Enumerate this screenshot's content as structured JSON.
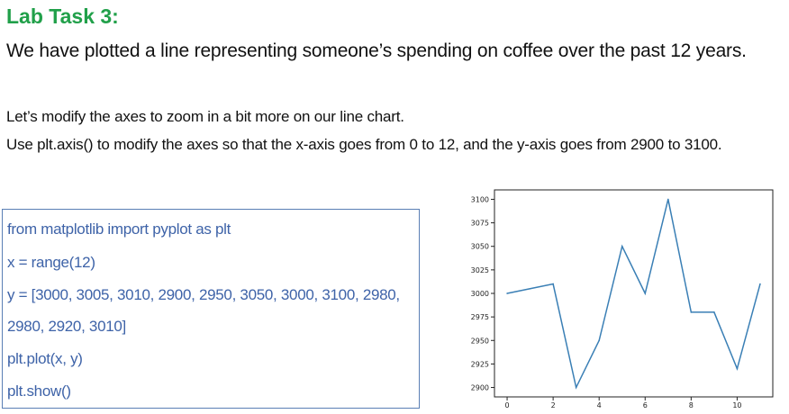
{
  "header": {
    "title": "Lab Task 3:",
    "subtitle": "We have plotted a line representing someone’s spending on coffee over the past 12 years."
  },
  "instructions": [
    "Let’s modify the axes to zoom in a bit more on our line chart.",
    "Use plt.axis() to modify the axes so that the x-axis goes from 0 to 12, and the y-axis goes from 2900 to 3100."
  ],
  "code": {
    "lines": [
      "from matplotlib import pyplot as plt",
      "x = range(12)",
      "y = [3000, 3005, 3010, 2900, 2950, 3050, 3000, 3100, 2980,",
      "2980, 2920, 3010]",
      "plt.plot(x, y)",
      "plt.show()"
    ]
  },
  "chart_data": {
    "type": "line",
    "title": "",
    "xlabel": "",
    "ylabel": "",
    "x": [
      0,
      1,
      2,
      3,
      4,
      5,
      6,
      7,
      8,
      9,
      10,
      11
    ],
    "series": [
      {
        "values": [
          3000,
          3005,
          3010,
          2900,
          2950,
          3050,
          3000,
          3100,
          2980,
          2980,
          2920,
          3010
        ],
        "color": "#3a7fb5"
      }
    ],
    "xlim": [
      -0.55,
      11.55
    ],
    "ylim": [
      2890,
      3110
    ],
    "xticks": [
      0,
      2,
      4,
      6,
      8,
      10
    ],
    "yticks": [
      2900,
      2925,
      2950,
      2975,
      3000,
      3025,
      3050,
      3075,
      3100
    ],
    "grid": false,
    "legend": "none"
  },
  "colors": {
    "title": "#21a04a",
    "code_text": "#3e63a8",
    "code_border": "#5a7fb5",
    "line": "#3a7fb5"
  }
}
